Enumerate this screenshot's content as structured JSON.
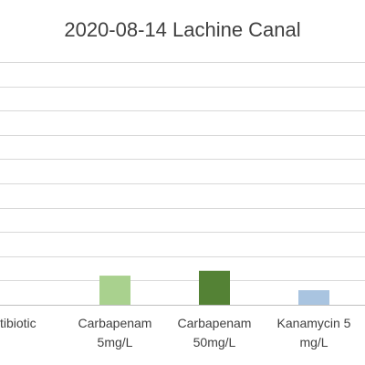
{
  "chart_data": {
    "type": "bar",
    "title": "2020-08-14 Lachine Canal",
    "categories": [
      [
        "antibiotic"
      ],
      [
        "Carbapenam",
        "5mg/L"
      ],
      [
        "Carbapenam",
        "50mg/L"
      ],
      [
        "Kanamycin 5",
        "mg/L"
      ]
    ],
    "values": [
      0,
      1.2,
      1.4,
      0.6
    ],
    "bar_colors": [
      "#ffffff",
      "#a9d18e",
      "#548235",
      "#a9c4e0"
    ],
    "ylim": [
      0,
      10
    ],
    "grid": true,
    "legend": "none"
  },
  "colors": {
    "gridline": "#d9d9d9",
    "axis": "#bfbfbf",
    "title": "#404040",
    "tick_label": "#404040"
  }
}
